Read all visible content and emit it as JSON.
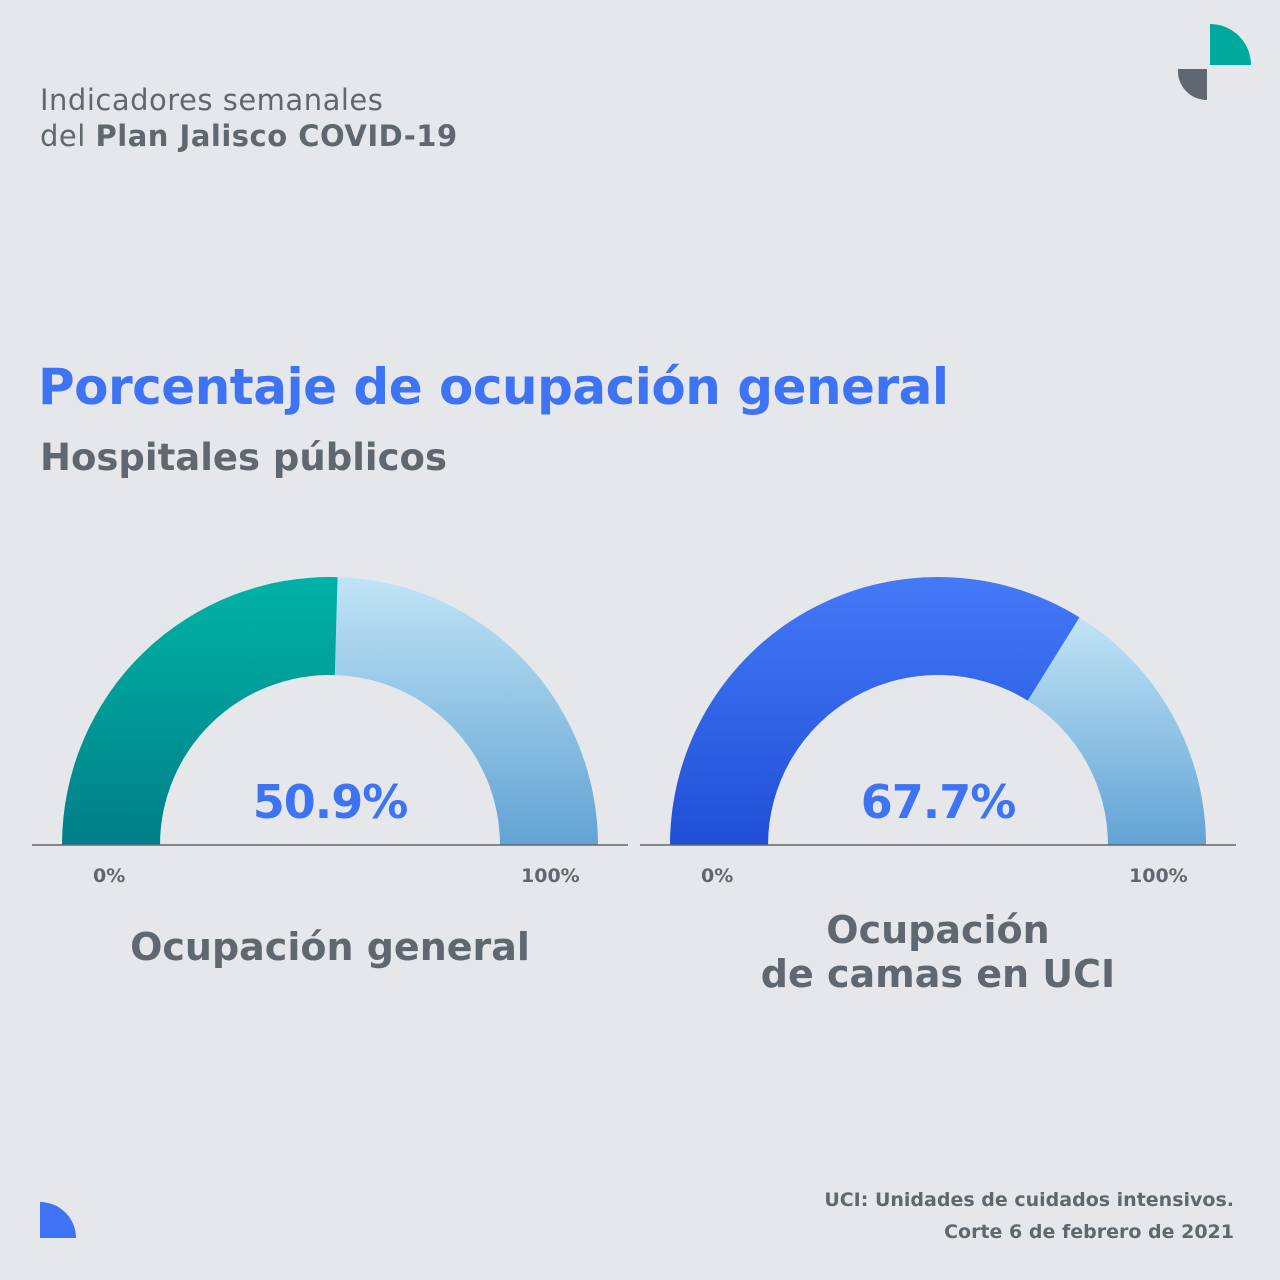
{
  "header": {
    "line1": "Indicadores semanales",
    "line2_prefix": "del ",
    "line2_bold": "Plan Jalisco COVID-19"
  },
  "title": "Porcentaje de ocupación general",
  "subtitle": "Hospitales públicos",
  "chart_data": [
    {
      "type": "gauge",
      "value": 50.9,
      "value_label": "50.9%",
      "min_label": "0%",
      "max_label": "100%",
      "label": "Ocupación general",
      "range": [
        0,
        100
      ],
      "fill_color": "#00a99d",
      "remainder_color": "#a9d5f0"
    },
    {
      "type": "gauge",
      "value": 67.7,
      "value_label": "67.7%",
      "min_label": "0%",
      "max_label": "100%",
      "label_line1": "Ocupación",
      "label_line2": "de camas en UCI",
      "range": [
        0,
        100
      ],
      "fill_color": "#3e73f4",
      "remainder_color": "#a9d5f0"
    }
  ],
  "footer": {
    "line1": "UCI: Unidades de cuidados intensivos.",
    "line2": "Corte 6 de febrero de 2021"
  },
  "colors": {
    "accent_blue": "#3e73f4",
    "teal": "#00a99d",
    "gray_text": "#5f6870",
    "background": "#e6e7eb"
  },
  "logos": [
    "quarter-circle-logo-teal-gray",
    "quarter-circle-logo-blue"
  ]
}
